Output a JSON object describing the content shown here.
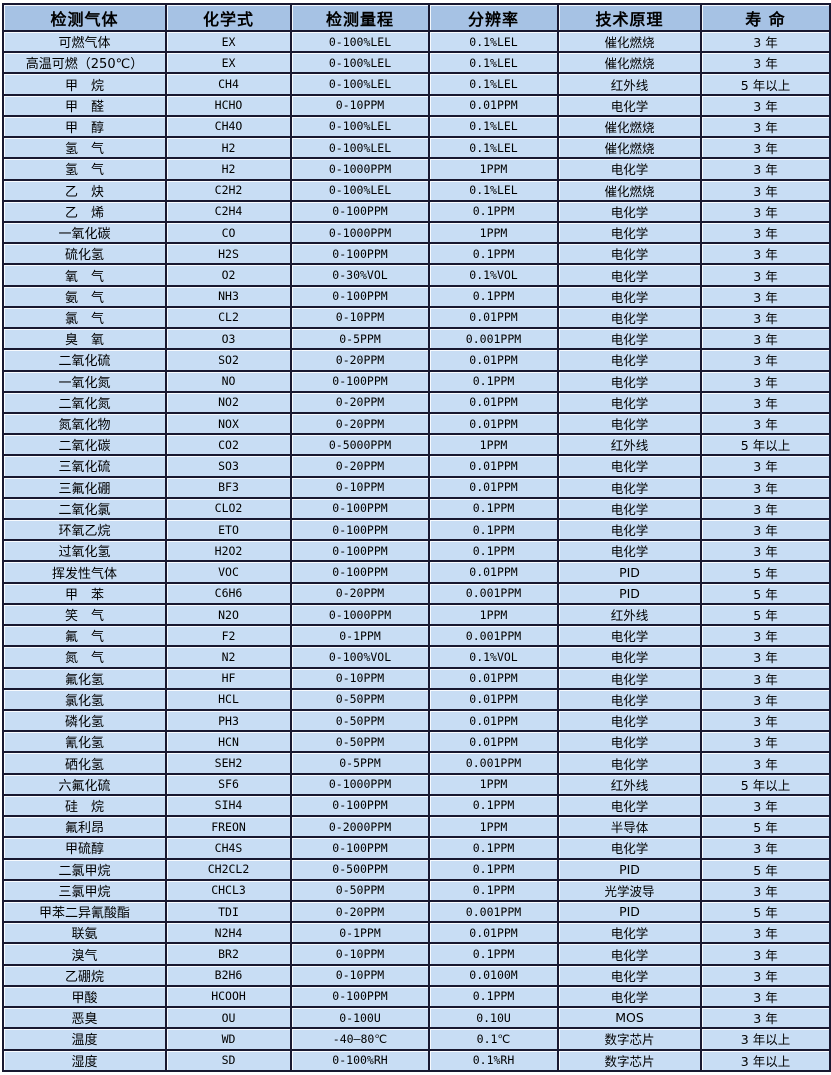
{
  "table": {
    "colors": {
      "header_bg": "#a6c2e4",
      "row_bg": "#c8ddf4",
      "border": "#181830",
      "text": "#000000",
      "page_bg": "#ffffff"
    },
    "headers": [
      "检测气体",
      "化学式",
      "检测量程",
      "分辨率",
      "技术原理",
      "寿 命"
    ],
    "column_keys": [
      "gas",
      "formula",
      "range",
      "resolution",
      "principle",
      "lifespan"
    ],
    "rows": [
      {
        "gas": "可燃气体",
        "formula": "EX",
        "range": "0-100%LEL",
        "resolution": "0.1%LEL",
        "principle": "催化燃烧",
        "lifespan": "3 年"
      },
      {
        "gas": "高温可燃（250℃）",
        "formula": "EX",
        "range": "0-100%LEL",
        "resolution": "0.1%LEL",
        "principle": "催化燃烧",
        "lifespan": "3 年"
      },
      {
        "gas": "甲　烷",
        "formula": "CH4",
        "range": "0-100%LEL",
        "resolution": "0.1%LEL",
        "principle": "红外线",
        "lifespan": "5 年以上"
      },
      {
        "gas": "甲　醛",
        "formula": "HCHO",
        "range": "0-10PPM",
        "resolution": "0.01PPM",
        "principle": "电化学",
        "lifespan": "3 年"
      },
      {
        "gas": "甲　醇",
        "formula": "CH4O",
        "range": "0-100%LEL",
        "resolution": "0.1%LEL",
        "principle": "催化燃烧",
        "lifespan": "3 年"
      },
      {
        "gas": "氢　气",
        "formula": "H2",
        "range": "0-100%LEL",
        "resolution": "0.1%LEL",
        "principle": "催化燃烧",
        "lifespan": "3 年"
      },
      {
        "gas": "氢　气",
        "formula": "H2",
        "range": "0-1000PPM",
        "resolution": "1PPM",
        "principle": "电化学",
        "lifespan": "3 年"
      },
      {
        "gas": "乙　炔",
        "formula": "C2H2",
        "range": "0-100%LEL",
        "resolution": "0.1%LEL",
        "principle": "催化燃烧",
        "lifespan": "3 年"
      },
      {
        "gas": "乙　烯",
        "formula": "C2H4",
        "range": "0-100PPM",
        "resolution": "0.1PPM",
        "principle": "电化学",
        "lifespan": "3 年"
      },
      {
        "gas": "一氧化碳",
        "formula": "CO",
        "range": "0-1000PPM",
        "resolution": "1PPM",
        "principle": "电化学",
        "lifespan": "3 年"
      },
      {
        "gas": "硫化氢",
        "formula": "H2S",
        "range": "0-100PPM",
        "resolution": "0.1PPM",
        "principle": "电化学",
        "lifespan": "3 年"
      },
      {
        "gas": "氧　气",
        "formula": "O2",
        "range": "0-30%VOL",
        "resolution": "0.1%VOL",
        "principle": "电化学",
        "lifespan": "3 年"
      },
      {
        "gas": "氨　气",
        "formula": "NH3",
        "range": "0-100PPM",
        "resolution": "0.1PPM",
        "principle": "电化学",
        "lifespan": "3 年"
      },
      {
        "gas": "氯　气",
        "formula": "CL2",
        "range": "0-10PPM",
        "resolution": "0.01PPM",
        "principle": "电化学",
        "lifespan": "3 年"
      },
      {
        "gas": "臭　氧",
        "formula": "O3",
        "range": "0-5PPM",
        "resolution": "0.001PPM",
        "principle": "电化学",
        "lifespan": "3 年"
      },
      {
        "gas": "二氧化硫",
        "formula": "SO2",
        "range": "0-20PPM",
        "resolution": "0.01PPM",
        "principle": "电化学",
        "lifespan": "3 年"
      },
      {
        "gas": "一氧化氮",
        "formula": "NO",
        "range": "0-100PPM",
        "resolution": "0.1PPM",
        "principle": "电化学",
        "lifespan": "3 年"
      },
      {
        "gas": "二氧化氮",
        "formula": "NO2",
        "range": "0-20PPM",
        "resolution": "0.01PPM",
        "principle": "电化学",
        "lifespan": "3 年"
      },
      {
        "gas": "氮氧化物",
        "formula": "NOX",
        "range": "0-20PPM",
        "resolution": "0.01PPM",
        "principle": "电化学",
        "lifespan": "3 年"
      },
      {
        "gas": "二氧化碳",
        "formula": "CO2",
        "range": "0-5000PPM",
        "resolution": "1PPM",
        "principle": "红外线",
        "lifespan": "5 年以上"
      },
      {
        "gas": "三氧化硫",
        "formula": "SO3",
        "range": "0-20PPM",
        "resolution": "0.01PPM",
        "principle": "电化学",
        "lifespan": "3 年"
      },
      {
        "gas": "三氟化硼",
        "formula": "BF3",
        "range": "0-10PPM",
        "resolution": "0.01PPM",
        "principle": "电化学",
        "lifespan": "3 年"
      },
      {
        "gas": "二氧化氯",
        "formula": "CLO2",
        "range": "0-100PPM",
        "resolution": "0.1PPM",
        "principle": "电化学",
        "lifespan": "3 年"
      },
      {
        "gas": "环氧乙烷",
        "formula": "ETO",
        "range": "0-100PPM",
        "resolution": "0.1PPM",
        "principle": "电化学",
        "lifespan": "3 年"
      },
      {
        "gas": "过氧化氢",
        "formula": "H2O2",
        "range": "0-100PPM",
        "resolution": "0.1PPM",
        "principle": "电化学",
        "lifespan": "3 年"
      },
      {
        "gas": "挥发性气体",
        "formula": "VOC",
        "range": "0-100PPM",
        "resolution": "0.01PPM",
        "principle": "PID",
        "lifespan": "5 年"
      },
      {
        "gas": "甲　苯",
        "formula": "C6H6",
        "range": "0-20PPM",
        "resolution": "0.001PPM",
        "principle": "PID",
        "lifespan": "5 年"
      },
      {
        "gas": "笑　气",
        "formula": "N2O",
        "range": "0-1000PPM",
        "resolution": "1PPM",
        "principle": "红外线",
        "lifespan": "5 年"
      },
      {
        "gas": "氟　气",
        "formula": "F2",
        "range": "0-1PPM",
        "resolution": "0.001PPM",
        "principle": "电化学",
        "lifespan": "3 年"
      },
      {
        "gas": "氮　气",
        "formula": "N2",
        "range": "0-100%VOL",
        "resolution": "0.1%VOL",
        "principle": "电化学",
        "lifespan": "3 年"
      },
      {
        "gas": "氟化氢",
        "formula": "HF",
        "range": "0-10PPM",
        "resolution": "0.01PPM",
        "principle": "电化学",
        "lifespan": "3 年"
      },
      {
        "gas": "氯化氢",
        "formula": "HCL",
        "range": "0-50PPM",
        "resolution": "0.01PPM",
        "principle": "电化学",
        "lifespan": "3 年"
      },
      {
        "gas": "磷化氢",
        "formula": "PH3",
        "range": "0-50PPM",
        "resolution": "0.01PPM",
        "principle": "电化学",
        "lifespan": "3 年"
      },
      {
        "gas": "氰化氢",
        "formula": "HCN",
        "range": "0-50PPM",
        "resolution": "0.01PPM",
        "principle": "电化学",
        "lifespan": "3 年"
      },
      {
        "gas": "硒化氢",
        "formula": "SEH2",
        "range": "0-5PPM",
        "resolution": "0.001PPM",
        "principle": "电化学",
        "lifespan": "3 年"
      },
      {
        "gas": "六氟化硫",
        "formula": "SF6",
        "range": "0-1000PPM",
        "resolution": "1PPM",
        "principle": "红外线",
        "lifespan": "5 年以上"
      },
      {
        "gas": "硅　烷",
        "formula": "SIH4",
        "range": "0-100PPM",
        "resolution": "0.1PPM",
        "principle": "电化学",
        "lifespan": "3 年"
      },
      {
        "gas": "氟利昂",
        "formula": "FREON",
        "range": "0-2000PPM",
        "resolution": "1PPM",
        "principle": "半导体",
        "lifespan": "5 年"
      },
      {
        "gas": "甲硫醇",
        "formula": "CH4S",
        "range": "0-100PPM",
        "resolution": "0.1PPM",
        "principle": "电化学",
        "lifespan": "3 年"
      },
      {
        "gas": "二氯甲烷",
        "formula": "CH2CL2",
        "range": "0-500PPM",
        "resolution": "0.1PPM",
        "principle": "PID",
        "lifespan": "5 年"
      },
      {
        "gas": "三氯甲烷",
        "formula": "CHCL3",
        "range": "0-50PPM",
        "resolution": "0.1PPM",
        "principle": "光学波导",
        "lifespan": "3 年"
      },
      {
        "gas": "甲苯二异氰酸酯",
        "formula": "TDI",
        "range": "0-20PPM",
        "resolution": "0.001PPM",
        "principle": "PID",
        "lifespan": "5 年"
      },
      {
        "gas": "联氨",
        "formula": "N2H4",
        "range": "0-1PPM",
        "resolution": "0.01PPM",
        "principle": "电化学",
        "lifespan": "3 年"
      },
      {
        "gas": "溴气",
        "formula": "BR2",
        "range": "0-10PPM",
        "resolution": "0.1PPM",
        "principle": "电化学",
        "lifespan": "3 年"
      },
      {
        "gas": "乙硼烷",
        "formula": "B2H6",
        "range": "0-10PPM",
        "resolution": "0.0100M",
        "principle": "电化学",
        "lifespan": "3 年"
      },
      {
        "gas": "甲酸",
        "formula": "HCOOH",
        "range": "0-100PPM",
        "resolution": "0.1PPM",
        "principle": "电化学",
        "lifespan": "3 年"
      },
      {
        "gas": "恶臭",
        "formula": "OU",
        "range": "0-100U",
        "resolution": "0.10U",
        "principle": "MOS",
        "lifespan": "3 年"
      },
      {
        "gas": "温度",
        "formula": "WD",
        "range": "-40—80℃",
        "resolution": "0.1℃",
        "principle": "数字芯片",
        "lifespan": "3 年以上"
      },
      {
        "gas": "湿度",
        "formula": "SD",
        "range": "0-100%RH",
        "resolution": "0.1%RH",
        "principle": "数字芯片",
        "lifespan": "3 年以上"
      }
    ]
  }
}
